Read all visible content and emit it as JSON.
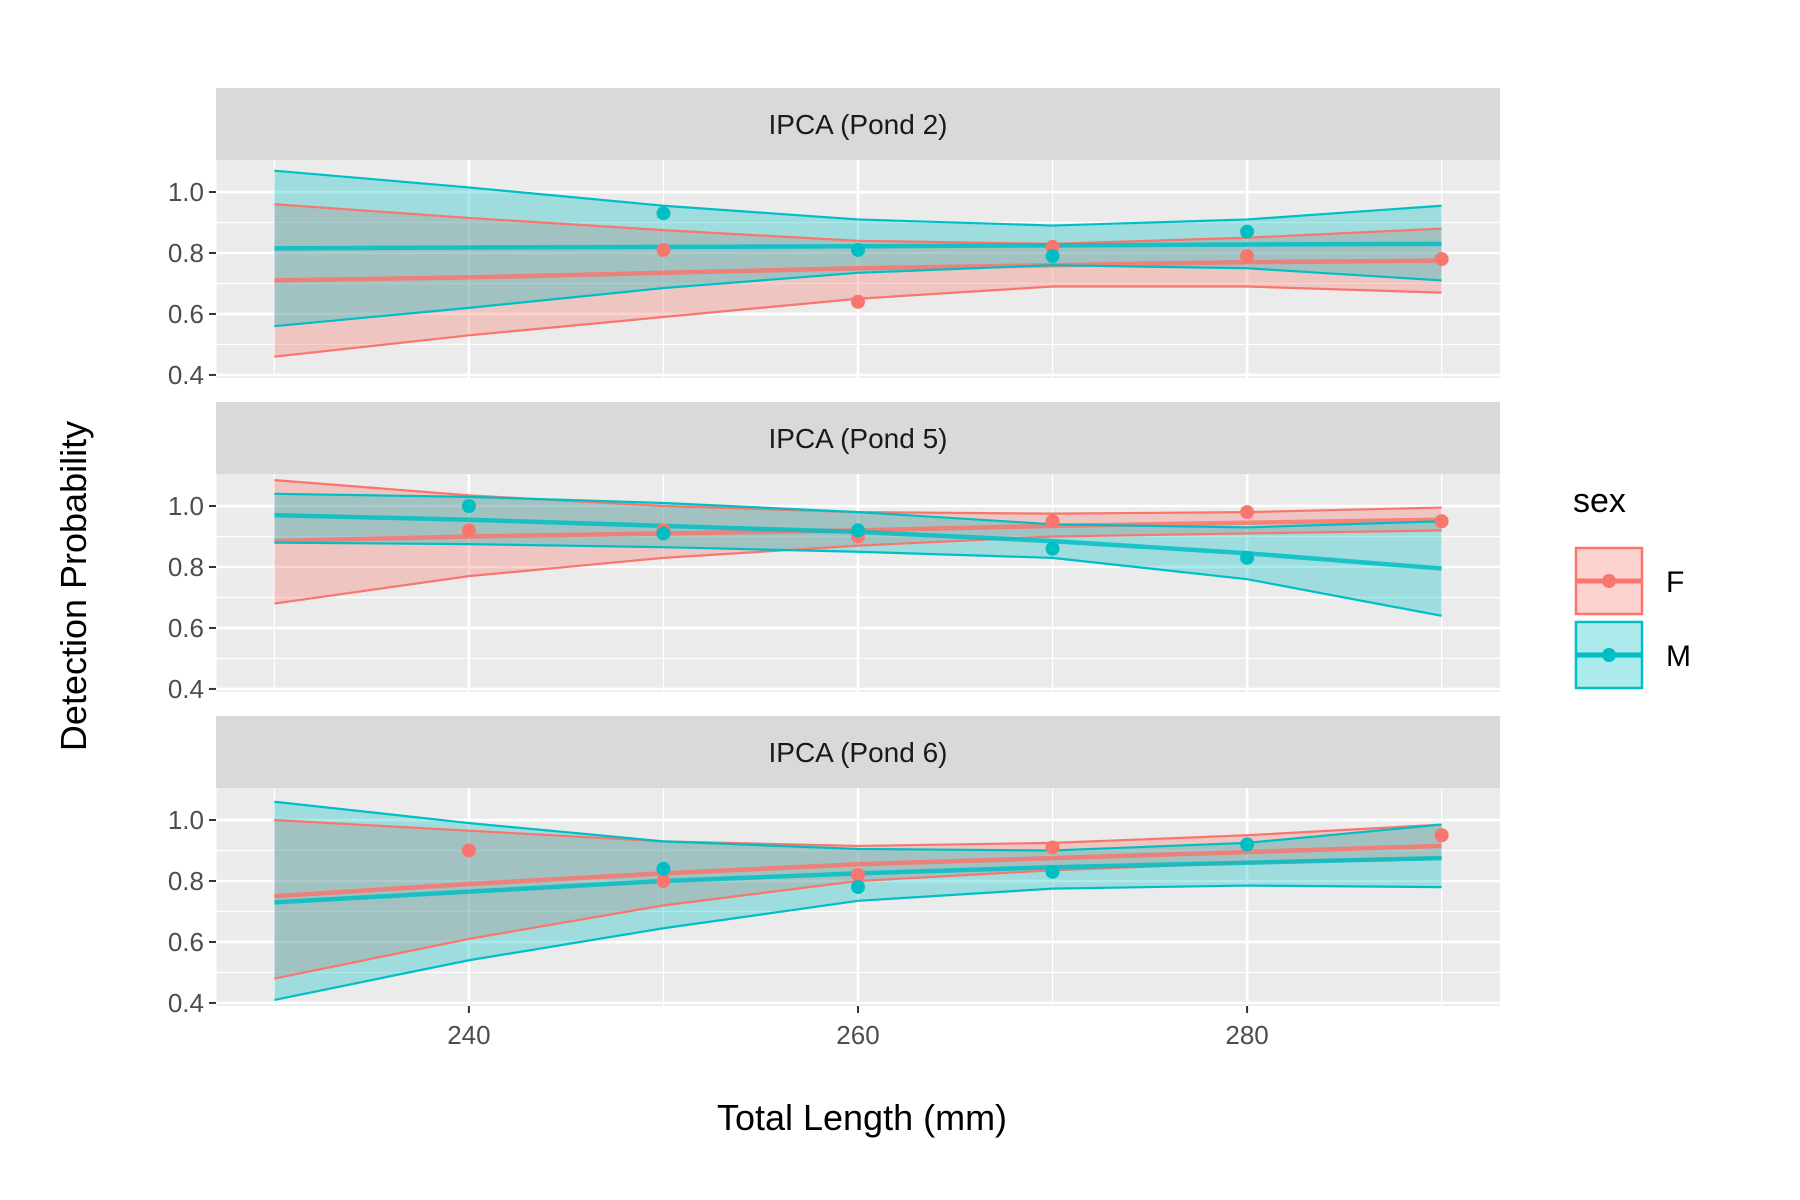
{
  "chart_data": {
    "type": "line",
    "xlabel": "Total Length (mm)",
    "ylabel": "Detection Probability",
    "xlim": [
      227,
      293
    ],
    "ylim": [
      0.39,
      1.105
    ],
    "x_ticks": [
      240,
      260,
      280
    ],
    "x_tick_labels": [
      "240",
      "260",
      "280"
    ],
    "y_ticks": [
      0.4,
      0.6,
      0.8,
      1.0
    ],
    "y_tick_labels": [
      "0.4",
      "0.6",
      "0.8",
      "1.0"
    ],
    "grid": true,
    "legend": {
      "title": "sex",
      "position": "right",
      "entries": [
        {
          "label": "F",
          "color": "#F8766D"
        },
        {
          "label": "M",
          "color": "#00BFC4"
        }
      ]
    },
    "panels": [
      {
        "strip": "IPCA (Pond 2)",
        "series": [
          {
            "name": "F",
            "color": "#F8766D",
            "fit_x": [
              230,
              240,
              250,
              260,
              270,
              280,
              290
            ],
            "fit": [
              0.71,
              0.72,
              0.735,
              0.75,
              0.76,
              0.77,
              0.775
            ],
            "lower": [
              0.46,
              0.53,
              0.59,
              0.65,
              0.69,
              0.69,
              0.67
            ],
            "upper": [
              0.96,
              0.915,
              0.875,
              0.84,
              0.83,
              0.85,
              0.88
            ],
            "points_x": [
              250,
              260,
              270,
              280,
              290
            ],
            "points_y": [
              0.81,
              0.64,
              0.82,
              0.79,
              0.78
            ]
          },
          {
            "name": "M",
            "color": "#00BFC4",
            "fit_x": [
              230,
              240,
              250,
              260,
              270,
              280,
              290
            ],
            "fit": [
              0.815,
              0.818,
              0.82,
              0.822,
              0.825,
              0.828,
              0.83
            ],
            "lower": [
              0.56,
              0.62,
              0.685,
              0.735,
              0.76,
              0.75,
              0.71
            ],
            "upper": [
              1.07,
              1.015,
              0.955,
              0.91,
              0.89,
              0.91,
              0.955
            ],
            "points_x": [
              250,
              260,
              270,
              280
            ],
            "points_y": [
              0.93,
              0.81,
              0.79,
              0.87
            ]
          }
        ]
      },
      {
        "strip": "IPCA (Pond 5)",
        "series": [
          {
            "name": "F",
            "color": "#F8766D",
            "fit_x": [
              230,
              240,
              250,
              260,
              270,
              280,
              290
            ],
            "fit": [
              0.885,
              0.9,
              0.91,
              0.92,
              0.935,
              0.945,
              0.955
            ],
            "lower": [
              0.68,
              0.77,
              0.83,
              0.87,
              0.9,
              0.91,
              0.92
            ],
            "upper": [
              1.085,
              1.035,
              1.0,
              0.98,
              0.975,
              0.98,
              0.995
            ],
            "points_x": [
              240,
              250,
              260,
              270,
              280,
              290
            ],
            "points_y": [
              0.92,
              0.92,
              0.9,
              0.95,
              0.98,
              0.95
            ]
          },
          {
            "name": "M",
            "color": "#00BFC4",
            "fit_x": [
              230,
              240,
              250,
              260,
              270,
              280,
              290
            ],
            "fit": [
              0.97,
              0.955,
              0.935,
              0.915,
              0.885,
              0.845,
              0.795
            ],
            "lower": [
              0.88,
              0.875,
              0.865,
              0.85,
              0.83,
              0.76,
              0.64
            ],
            "upper": [
              1.04,
              1.03,
              1.01,
              0.98,
              0.94,
              0.93,
              0.95
            ],
            "points_x": [
              240,
              250,
              260,
              270,
              280
            ],
            "points_y": [
              1.0,
              0.91,
              0.92,
              0.86,
              0.83
            ]
          }
        ]
      },
      {
        "strip": "IPCA (Pond 6)",
        "series": [
          {
            "name": "F",
            "color": "#F8766D",
            "fit_x": [
              230,
              240,
              250,
              260,
              270,
              280,
              290
            ],
            "fit": [
              0.75,
              0.79,
              0.825,
              0.855,
              0.875,
              0.895,
              0.915
            ],
            "lower": [
              0.48,
              0.61,
              0.72,
              0.8,
              0.835,
              0.86,
              0.875
            ],
            "upper": [
              1.0,
              0.965,
              0.93,
              0.915,
              0.925,
              0.95,
              0.985
            ],
            "points_x": [
              240,
              250,
              260,
              270,
              290
            ],
            "points_y": [
              0.9,
              0.8,
              0.82,
              0.91,
              0.95
            ]
          },
          {
            "name": "M",
            "color": "#00BFC4",
            "fit_x": [
              230,
              240,
              250,
              260,
              270,
              280,
              290
            ],
            "fit": [
              0.73,
              0.765,
              0.8,
              0.825,
              0.845,
              0.86,
              0.875
            ],
            "lower": [
              0.41,
              0.54,
              0.645,
              0.735,
              0.775,
              0.785,
              0.78
            ],
            "upper": [
              1.06,
              0.99,
              0.93,
              0.905,
              0.9,
              0.925,
              0.985
            ],
            "points_x": [
              250,
              260,
              270,
              280
            ],
            "points_y": [
              0.84,
              0.78,
              0.83,
              0.92
            ]
          }
        ]
      }
    ]
  }
}
